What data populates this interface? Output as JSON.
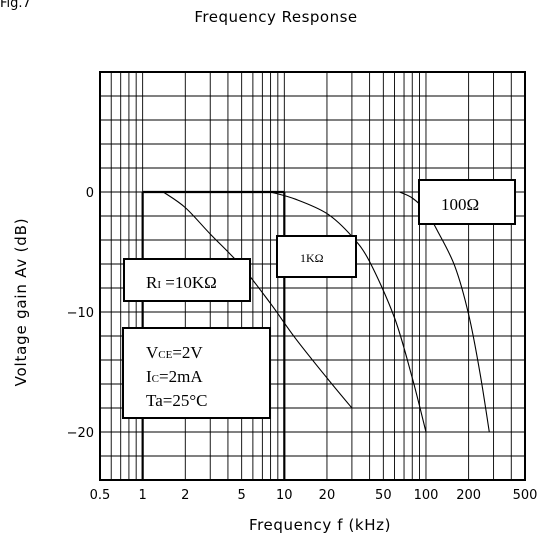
{
  "header": {
    "fig_label": "Fig.7"
  },
  "chart_data": {
    "type": "line",
    "title": "Frequency Response",
    "xlabel": "Frequency f (kHz)",
    "ylabel": "Voltage gain Av (dB)",
    "x_scale": "log",
    "xlim": [
      0.5,
      500
    ],
    "ylim": [
      -24,
      10
    ],
    "x_ticks": [
      0.5,
      1,
      2,
      5,
      10,
      20,
      50,
      100,
      200,
      500
    ],
    "x_tick_labels": [
      "0.5",
      "1",
      "2",
      "5",
      "10",
      "20",
      "50",
      "100",
      "200",
      "500"
    ],
    "y_ticks": [
      0,
      -10,
      -20
    ],
    "y_tick_labels": [
      "0",
      "−10",
      "−20"
    ],
    "grid": true,
    "series": [
      {
        "name": "Rʟ=10KΩ",
        "x": [
          1.4,
          2,
          3,
          5,
          8,
          12,
          20,
          30
        ],
        "y": [
          0,
          -1.3,
          -3.5,
          -6.2,
          -9.3,
          -12.2,
          -15.5,
          -18
        ]
      },
      {
        "name": "1KΩ",
        "x": [
          8,
          12,
          20,
          30,
          40,
          60,
          80,
          100
        ],
        "y": [
          0,
          -0.6,
          -1.8,
          -3.7,
          -5.8,
          -10.5,
          -15.5,
          -20
        ]
      },
      {
        "name": "100Ω",
        "x": [
          65,
          80,
          100,
          120,
          160,
          200,
          240,
          280
        ],
        "y": [
          0,
          -0.5,
          -1.6,
          -3.2,
          -6.2,
          -10.2,
          -15,
          -20
        ]
      }
    ],
    "annotations": {
      "r10k": {
        "prefix": "R",
        "sub": "I",
        "rest": " =10KΩ"
      },
      "r1k": "1KΩ",
      "r100": "100Ω",
      "conditions": [
        {
          "prefix": "V",
          "sub": "CE",
          "rest": "=2V"
        },
        {
          "prefix": "I",
          "sub": "C",
          "rest": "=2mA"
        },
        {
          "prefix": "Ta=25",
          "sub": "",
          "rest": "°C"
        }
      ]
    }
  }
}
